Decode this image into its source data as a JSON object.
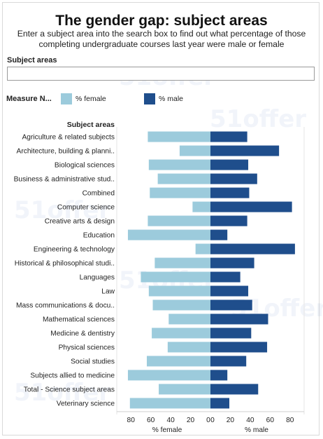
{
  "header": {
    "title": "The gender gap: subject areas",
    "subtitle_line1": "Enter a subject area into the search box to find out what percentage of those",
    "subtitle_line2": "completing undergraduate courses last year were male or female"
  },
  "search": {
    "label": "Subject areas",
    "value": "",
    "placeholder": ""
  },
  "legend": {
    "title": "Measure N...",
    "items": [
      {
        "label": "% female",
        "color": "#9ccbdc"
      },
      {
        "label": "% male",
        "color": "#1f4e8c"
      }
    ]
  },
  "watermark": {
    "text": "51offer"
  },
  "chart_data": {
    "type": "bar",
    "orientation": "horizontal",
    "layout": "back-to-back",
    "row_header": "Subject areas",
    "categories": [
      "Agriculture & related subjects",
      "Architecture, building & planni..",
      "Biological sciences",
      "Business & administrative stud..",
      "Combined",
      "Computer science",
      "Creative arts & design",
      "Education",
      "Engineering & technology",
      "Historical & philosophical studi..",
      "Languages",
      "Law",
      "Mass communications & docu..",
      "Mathematical sciences",
      "Medicine & dentistry",
      "Physical sciences",
      "Social studies",
      "Subjects allied to medicine",
      "Total - Science subject areas",
      "Veterinary science"
    ],
    "series": [
      {
        "name": "% female",
        "color": "#9ccbdc",
        "values": [
          63,
          31,
          62,
          53,
          61,
          18,
          63,
          83,
          15,
          56,
          70,
          62,
          58,
          42,
          59,
          43,
          64,
          83,
          52,
          81
        ]
      },
      {
        "name": "% male",
        "color": "#1f4e8c",
        "values": [
          37,
          69,
          38,
          47,
          39,
          82,
          37,
          17,
          85,
          44,
          30,
          38,
          42,
          58,
          41,
          57,
          36,
          17,
          48,
          19
        ]
      }
    ],
    "xlabels": [
      "% female",
      "% male"
    ],
    "xlim": [
      0,
      90
    ],
    "ticks": [
      80,
      60,
      40,
      20,
      0
    ],
    "ticks_right": [
      0,
      20,
      40,
      60,
      80
    ]
  }
}
